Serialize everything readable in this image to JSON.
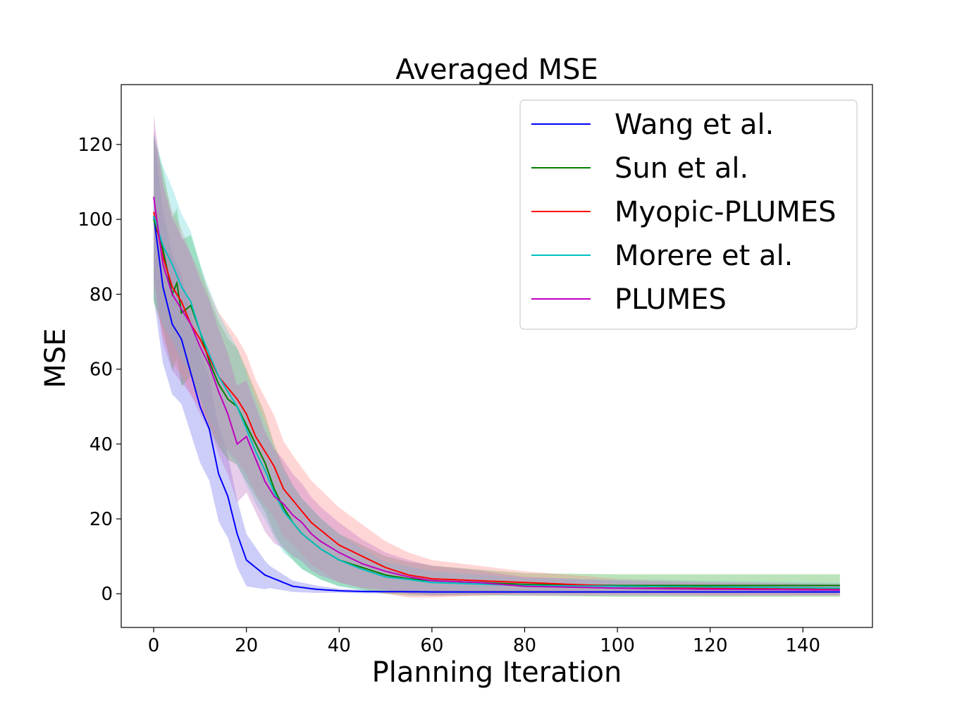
{
  "chart_data": {
    "type": "line",
    "title": "Averaged MSE",
    "xlabel": "Planning Iteration",
    "ylabel": "MSE",
    "xlim": [
      -7,
      155
    ],
    "ylim": [
      -9,
      136
    ],
    "xticks": [
      0,
      20,
      40,
      60,
      80,
      100,
      120,
      140
    ],
    "yticks": [
      0,
      20,
      40,
      60,
      80,
      100,
      120
    ],
    "grid": false,
    "legend_position": "top-right",
    "series": [
      {
        "name": "Wang et al.",
        "color": "#0000ff",
        "band_color": "#7070ee",
        "points": [
          [
            0,
            101
          ],
          [
            2,
            82
          ],
          [
            4,
            72
          ],
          [
            6,
            68
          ],
          [
            8,
            59
          ],
          [
            10,
            50
          ],
          [
            12,
            44
          ],
          [
            14,
            32
          ],
          [
            16,
            26
          ],
          [
            18,
            16
          ],
          [
            20,
            9
          ],
          [
            22,
            7
          ],
          [
            24,
            5
          ],
          [
            28,
            3
          ],
          [
            30,
            2
          ],
          [
            35,
            1.2
          ],
          [
            40,
            0.8
          ],
          [
            45,
            0.6
          ],
          [
            60,
            0.5
          ],
          [
            80,
            0.5
          ],
          [
            100,
            0.5
          ],
          [
            120,
            0.5
          ],
          [
            148,
            0.5
          ]
        ],
        "band_width": [
          [
            0,
            22
          ],
          [
            5,
            18
          ],
          [
            10,
            15
          ],
          [
            15,
            12
          ],
          [
            20,
            7
          ],
          [
            25,
            3
          ],
          [
            30,
            1.5
          ],
          [
            40,
            0.5
          ],
          [
            148,
            0.3
          ]
        ]
      },
      {
        "name": "Sun et al.",
        "color": "#008000",
        "band_color": "#3cae3c",
        "points": [
          [
            0,
            100
          ],
          [
            2,
            92
          ],
          [
            4,
            80
          ],
          [
            5,
            83
          ],
          [
            6,
            75
          ],
          [
            8,
            77
          ],
          [
            10,
            70
          ],
          [
            12,
            62
          ],
          [
            14,
            56
          ],
          [
            16,
            52
          ],
          [
            18,
            50
          ],
          [
            20,
            45
          ],
          [
            22,
            40
          ],
          [
            24,
            35
          ],
          [
            26,
            28
          ],
          [
            28,
            23
          ],
          [
            30,
            19
          ],
          [
            32,
            16
          ],
          [
            34,
            14
          ],
          [
            36,
            12
          ],
          [
            40,
            9
          ],
          [
            45,
            7
          ],
          [
            50,
            5
          ],
          [
            55,
            4
          ],
          [
            60,
            3.5
          ],
          [
            70,
            3
          ],
          [
            80,
            2.5
          ],
          [
            100,
            2.2
          ],
          [
            120,
            2.2
          ],
          [
            140,
            2.2
          ],
          [
            148,
            2.2
          ]
        ],
        "band_width": [
          [
            0,
            22
          ],
          [
            10,
            18
          ],
          [
            20,
            15
          ],
          [
            30,
            10
          ],
          [
            40,
            7
          ],
          [
            50,
            5
          ],
          [
            60,
            4
          ],
          [
            80,
            3
          ],
          [
            100,
            3
          ],
          [
            148,
            3
          ]
        ]
      },
      {
        "name": "Myopic-PLUMES",
        "color": "#ff0000",
        "band_color": "#ff8a8a",
        "points": [
          [
            0,
            102
          ],
          [
            2,
            90
          ],
          [
            4,
            82
          ],
          [
            6,
            78
          ],
          [
            8,
            72
          ],
          [
            10,
            68
          ],
          [
            12,
            63
          ],
          [
            14,
            58
          ],
          [
            16,
            55
          ],
          [
            18,
            52
          ],
          [
            20,
            48
          ],
          [
            22,
            42
          ],
          [
            24,
            38
          ],
          [
            26,
            34
          ],
          [
            28,
            28
          ],
          [
            30,
            25
          ],
          [
            32,
            22
          ],
          [
            34,
            19
          ],
          [
            36,
            17
          ],
          [
            40,
            13
          ],
          [
            45,
            10
          ],
          [
            50,
            7
          ],
          [
            55,
            5
          ],
          [
            60,
            4
          ],
          [
            70,
            3.5
          ],
          [
            80,
            3
          ],
          [
            100,
            2
          ],
          [
            120,
            1.5
          ],
          [
            148,
            1.2
          ]
        ],
        "band_width": [
          [
            0,
            22
          ],
          [
            10,
            18
          ],
          [
            20,
            16
          ],
          [
            30,
            12
          ],
          [
            40,
            10
          ],
          [
            50,
            7
          ],
          [
            60,
            5
          ],
          [
            70,
            4
          ],
          [
            80,
            3
          ],
          [
            100,
            2
          ],
          [
            148,
            1.5
          ]
        ]
      },
      {
        "name": "Morere et al.",
        "color": "#00bfbf",
        "band_color": "#66d8d8",
        "points": [
          [
            0,
            101
          ],
          [
            2,
            93
          ],
          [
            4,
            88
          ],
          [
            6,
            82
          ],
          [
            8,
            78
          ],
          [
            10,
            70
          ],
          [
            12,
            64
          ],
          [
            14,
            58
          ],
          [
            16,
            54
          ],
          [
            18,
            50
          ],
          [
            20,
            44
          ],
          [
            22,
            38
          ],
          [
            24,
            33
          ],
          [
            26,
            27
          ],
          [
            28,
            22
          ],
          [
            30,
            19
          ],
          [
            32,
            16
          ],
          [
            34,
            14
          ],
          [
            36,
            12
          ],
          [
            40,
            9
          ],
          [
            45,
            6.5
          ],
          [
            50,
            4.5
          ],
          [
            55,
            3.8
          ],
          [
            60,
            3
          ],
          [
            70,
            2.6
          ],
          [
            80,
            2.2
          ],
          [
            100,
            2
          ],
          [
            120,
            1.8
          ],
          [
            148,
            1.5
          ]
        ],
        "band_width": [
          [
            0,
            22
          ],
          [
            10,
            18
          ],
          [
            20,
            15
          ],
          [
            30,
            10
          ],
          [
            40,
            7
          ],
          [
            50,
            4
          ],
          [
            60,
            3
          ],
          [
            80,
            2
          ],
          [
            148,
            1.5
          ]
        ]
      },
      {
        "name": "PLUMES",
        "color": "#bf00bf",
        "band_color": "#c072c6",
        "points": [
          [
            0,
            106
          ],
          [
            2,
            88
          ],
          [
            4,
            80
          ],
          [
            6,
            76
          ],
          [
            8,
            72
          ],
          [
            10,
            66
          ],
          [
            12,
            61
          ],
          [
            14,
            54
          ],
          [
            16,
            48
          ],
          [
            18,
            40
          ],
          [
            20,
            42
          ],
          [
            22,
            36
          ],
          [
            24,
            30
          ],
          [
            26,
            26
          ],
          [
            28,
            24
          ],
          [
            30,
            21
          ],
          [
            32,
            19
          ],
          [
            34,
            16
          ],
          [
            36,
            14
          ],
          [
            40,
            11
          ],
          [
            45,
            8
          ],
          [
            50,
            6
          ],
          [
            55,
            4.5
          ],
          [
            60,
            3.5
          ],
          [
            70,
            3
          ],
          [
            80,
            2
          ],
          [
            100,
            1.5
          ],
          [
            120,
            1.2
          ],
          [
            148,
            1
          ]
        ],
        "band_width": [
          [
            0,
            22
          ],
          [
            10,
            18
          ],
          [
            20,
            15
          ],
          [
            30,
            11
          ],
          [
            40,
            8
          ],
          [
            50,
            5
          ],
          [
            60,
            4
          ],
          [
            80,
            2.5
          ],
          [
            100,
            2
          ],
          [
            148,
            1.5
          ]
        ]
      }
    ]
  }
}
